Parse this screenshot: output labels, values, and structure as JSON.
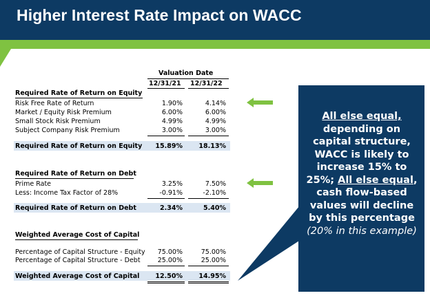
{
  "slide": {
    "title": "Higher Interest Rate Impact on WACC",
    "colors": {
      "header": "#0d3a63",
      "accent_green": "#7fc241",
      "row_shade": "#dbe6f2"
    }
  },
  "table": {
    "valuation_date_label": "Valuation Date",
    "col1": "12/31/21",
    "col2": "12/31/22",
    "equity": {
      "header": "Required Rate of Return on Equity",
      "rows": [
        {
          "label": "Risk Free Rate of Return",
          "v1": "1.90%",
          "v2": "4.14%"
        },
        {
          "label": "Market / Equity Risk Premium",
          "v1": "6.00%",
          "v2": "6.00%"
        },
        {
          "label": "Small Stock Risk Premium",
          "v1": "4.99%",
          "v2": "4.99%"
        },
        {
          "label": "Subject Company Risk Premium",
          "v1": "3.00%",
          "v2": "3.00%"
        }
      ],
      "total": {
        "label": "Required Rate of Return on Equity",
        "v1": "15.89%",
        "v2": "18.13%"
      }
    },
    "debt": {
      "header": "Required Rate of Return on Debt",
      "rows": [
        {
          "label": "Prime Rate",
          "v1": "3.25%",
          "v2": "7.50%"
        },
        {
          "label": "Less: Income Tax Factor of 28%",
          "v1": "-0.91%",
          "v2": "-2.10%"
        }
      ],
      "total": {
        "label": "Required Rate of Return on Debt",
        "v1": "2.34%",
        "v2": "5.40%"
      }
    },
    "wacc": {
      "header": "Weighted Average Cost of Capital",
      "rows": [
        {
          "label": "Percentage of Capital Structure - Equity",
          "v1": "75.00%",
          "v2": "75.00%"
        },
        {
          "label": "Percentage of Capital Structure - Debt",
          "v1": "25.00%",
          "v2": "25.00%"
        }
      ],
      "total": {
        "label": "Weighted Average Cost of Capital",
        "v1": "12.50%",
        "v2": "14.95%"
      }
    }
  },
  "callout": {
    "p1": "All else equal,",
    "p2": "depending on capital structure, WACC is likely to increase 15% to 25%;",
    "p3": "All else equal",
    "p4": ", cash flow-based values will decline by this percentage",
    "p5": "(20% in this example)"
  },
  "icons": {
    "arrow_1": "left-arrow-icon",
    "arrow_2": "left-arrow-icon"
  }
}
